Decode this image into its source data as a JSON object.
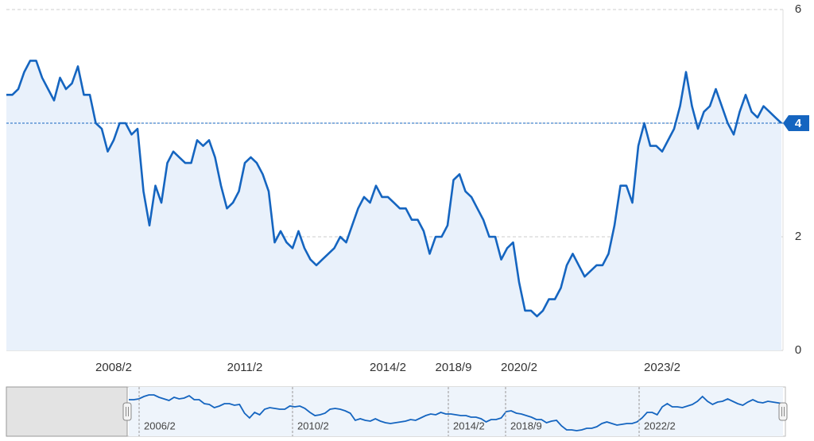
{
  "chart_data": {
    "type": "line",
    "categories": [
      null,
      null,
      null,
      null,
      null,
      null,
      null,
      null,
      null,
      null,
      null,
      null,
      null,
      null,
      null,
      null,
      null,
      null,
      "2008/2",
      null,
      null,
      null,
      null,
      null,
      null,
      null,
      null,
      null,
      null,
      null,
      null,
      null,
      null,
      null,
      null,
      null,
      null,
      null,
      null,
      null,
      "2011/2",
      null,
      null,
      null,
      null,
      null,
      null,
      null,
      null,
      null,
      null,
      null,
      null,
      null,
      null,
      null,
      null,
      null,
      null,
      null,
      null,
      null,
      null,
      null,
      "2014/2",
      null,
      null,
      null,
      null,
      null,
      null,
      null,
      null,
      null,
      null,
      "2018/9",
      null,
      null,
      null,
      null,
      null,
      null,
      null,
      null,
      null,
      null,
      "2020/2",
      null,
      null,
      null,
      null,
      null,
      null,
      null,
      null,
      null,
      null,
      null,
      null,
      null,
      null,
      null,
      null,
      null,
      null,
      null,
      null,
      null,
      null,
      null,
      "2023/2",
      null,
      null,
      null,
      null,
      null,
      null,
      null,
      null,
      null,
      null,
      null,
      null,
      null,
      null,
      null,
      null,
      null,
      null,
      null,
      null
    ],
    "values": [
      4.5,
      4.5,
      4.6,
      4.9,
      5.1,
      5.1,
      4.8,
      4.6,
      4.4,
      4.8,
      4.6,
      4.7,
      5.0,
      4.5,
      4.5,
      4.0,
      3.9,
      3.5,
      3.7,
      4.0,
      4.0,
      3.8,
      3.9,
      2.8,
      2.2,
      2.9,
      2.6,
      3.3,
      3.5,
      3.4,
      3.3,
      3.3,
      3.7,
      3.6,
      3.7,
      3.4,
      2.9,
      2.5,
      2.6,
      2.8,
      3.3,
      3.4,
      3.3,
      3.1,
      2.8,
      1.9,
      2.1,
      1.9,
      1.8,
      2.1,
      1.8,
      1.6,
      1.5,
      1.6,
      1.7,
      1.8,
      2.0,
      1.9,
      2.2,
      2.5,
      2.7,
      2.6,
      2.9,
      2.7,
      2.7,
      2.6,
      2.5,
      2.5,
      2.3,
      2.3,
      2.1,
      1.7,
      2.0,
      2.0,
      2.2,
      3.0,
      3.1,
      2.8,
      2.7,
      2.5,
      2.3,
      2.0,
      2.0,
      1.6,
      1.8,
      1.9,
      1.2,
      0.7,
      0.7,
      0.6,
      0.7,
      0.9,
      0.9,
      1.1,
      1.5,
      1.7,
      1.5,
      1.3,
      1.4,
      1.5,
      1.5,
      1.7,
      2.2,
      2.9,
      2.9,
      2.6,
      3.6,
      4.0,
      3.6,
      3.6,
      3.5,
      3.7,
      3.9,
      4.3,
      4.9,
      4.3,
      3.9,
      4.2,
      4.3,
      4.6,
      4.3,
      4.0,
      3.8,
      4.2,
      4.5,
      4.2,
      4.1,
      4.3,
      4.2,
      4.1,
      4
    ],
    "color": "#1565c0",
    "ylim": [
      0,
      6
    ],
    "yticks": [
      0,
      2,
      4,
      6
    ],
    "grid": true,
    "navigator": {
      "labels": [
        "2006/2",
        "2010/2",
        "2014/2",
        "2018/9",
        "2022/2"
      ]
    }
  }
}
